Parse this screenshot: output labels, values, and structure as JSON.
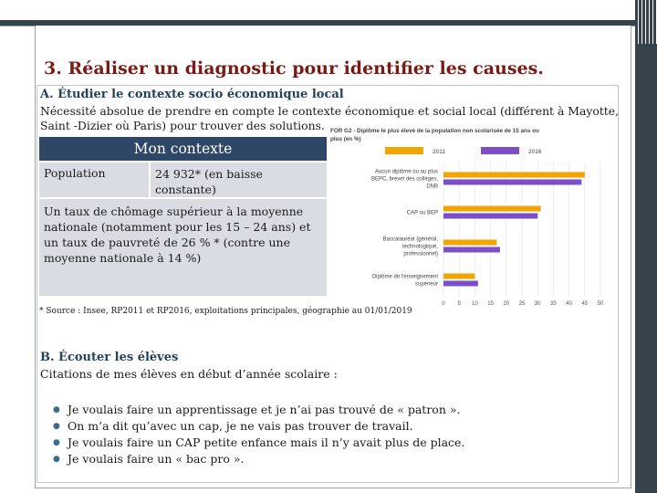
{
  "slide": {
    "title": "3. Réaliser un diagnostic pour identifier les causes."
  },
  "section_a": {
    "title": "A. Étudier le contexte socio économique local",
    "text": "Nécessité absolue de prendre en compte le contexte économique et social local (différent à Mayotte,  Saint -Dizier où Paris) pour trouver des solutions."
  },
  "context_table": {
    "header": "Mon contexte",
    "population_label": "Population",
    "population_value": "24 932* (en baisse constante)",
    "chomage_text": "Un taux de chômage supérieur à la moyenne nationale (notamment pour les 15 – 24 ans) et un taux de pauvreté de 26 % * (contre une moyenne nationale à 14 %)"
  },
  "source_note": "* Source : Insee, RP2011 et RP2016, exploitations principales, géographie au 01/01/2019",
  "section_b": {
    "title": "B. Écouter les élèves",
    "subtitle": "Citations de mes élèves en début d’année scolaire :",
    "quotes": [
      "Je voulais faire un apprentissage et je n’ai pas trouvé de « patron ».",
      "On m’a dit qu’avec un cap, je ne vais pas trouver de travail.",
      "Je voulais faire un CAP petite enfance mais il n’y avait plus de place.",
      "Je voulais faire un « bac pro »."
    ]
  },
  "colors": {
    "title_red": "#7a1a14",
    "section_blue": "#24415e",
    "header_navy": "#2f4766",
    "cell_gray": "#d9dde3",
    "series_2011": "#f0a500",
    "series_2016": "#7a4fc9"
  },
  "chart_data": {
    "type": "bar",
    "orientation": "horizontal",
    "title": "FOR G2 - Diplôme le plus élevé de la population non scolarisée de 15 ans ou plus (en %)",
    "categories": [
      "Aucun diplôme ou au plus BEPC, brevet des collèges, DNB",
      "CAP ou BEP",
      "Baccalauréat (général, technologique, professionnel)",
      "Diplôme de l'enseignement supérieur"
    ],
    "series": [
      {
        "name": "2011",
        "values": [
          45,
          31,
          17,
          10
        ]
      },
      {
        "name": "2016",
        "values": [
          44,
          30,
          18,
          11
        ]
      }
    ],
    "xticks": [
      "0",
      "5",
      "10",
      "15",
      "20",
      "25",
      "30",
      "35",
      "40",
      "45",
      "50"
    ],
    "xlim": [
      0,
      50
    ],
    "grid": true,
    "legend_position": "top"
  }
}
